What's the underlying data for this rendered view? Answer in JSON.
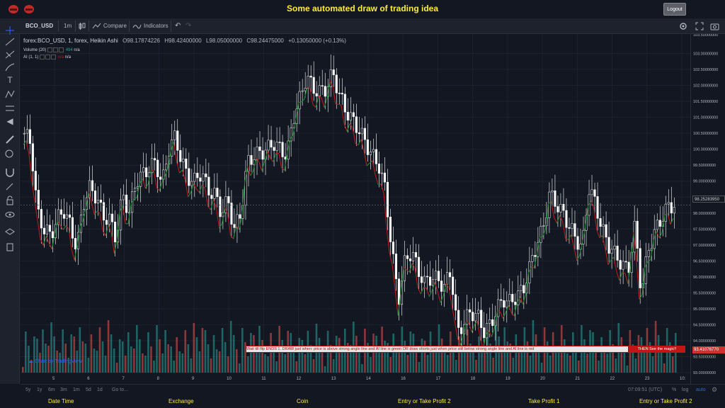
{
  "banner": {
    "title": "Some automated draw of trading idea",
    "logout_label": "Logout"
  },
  "toolbar": {
    "symbol": "BCO_USD",
    "interval": "1m",
    "compare_label": "Compare",
    "indicators_label": "Indicators"
  },
  "legend": {
    "symbol_desc": "forex:BCO_USD, 1, forex, Heikin Ashi",
    "open": "O98.17874226",
    "high": "H98.42400000",
    "low": "L98.05000000",
    "close": "C98.24475000",
    "change": "+0.13050000 (+0.13%)",
    "volume_label": "Volume (20)",
    "volume_value": "494",
    "volume_na": "n/a",
    "ai_label": "AI (1, 1)",
    "ai_value1": "n/a",
    "ai_value2": "n/a"
  },
  "price_axis": {
    "ticks": [
      "103.00000000",
      "102.50000000",
      "102.00000000",
      "101.50000000",
      "101.00000000",
      "100.50000000",
      "100.00000000",
      "99.50000000",
      "99.00000000",
      "98.50000000",
      "98.00000000",
      "97.50000000",
      "97.00000000",
      "96.50000000",
      "96.00000000",
      "95.50000000",
      "95.00000000",
      "94.50000000",
      "94.00000000",
      "93.50000000",
      "93.00000000"
    ],
    "top_tick": "103.50000000",
    "last_price": "98.25283950",
    "red_price": "93.41076770"
  },
  "time_axis": {
    "labels": [
      "5",
      "6",
      "7",
      "8",
      "9",
      "10",
      "11",
      "12",
      "13",
      "14",
      "16",
      "17",
      "18",
      "19",
      "20",
      "21",
      "22",
      "23",
      "10:"
    ]
  },
  "annotation": {
    "text": "Wait till flip ENDS  1.  DRAW just when:  price is above strong angle line and AI line is green        OR        draw shorts just when price still below strong angle line and AI line is red",
    "magic": "THEN See the magic!!"
  },
  "watermark": "Chart by TradingView",
  "bottom_bar": {
    "ranges": [
      "5y",
      "1y",
      "6m",
      "3m",
      "1m",
      "5d",
      "1d"
    ],
    "goto": "Go to...",
    "time": "07:09:51 (UTC)",
    "percent": "%",
    "log": "log",
    "auto": "auto"
  },
  "footer": {
    "items": [
      "Date Time",
      "Exchange",
      "Coin",
      "Entry or Take Profit 2",
      "Take Profit 1",
      "Entry or Take Profit 2"
    ]
  },
  "colors": {
    "accent_yellow": "#ffeb3b",
    "candle_white": "#ffffff",
    "ai_green": "#1b8a2e",
    "ai_red": "#b71c1c",
    "vol_green": "#26a69a",
    "vol_red": "#ef5350",
    "annotation_red": "#c01616"
  },
  "chart_data": {
    "type": "candlestick",
    "style": "Heikin Ashi",
    "ylim": [
      93.0,
      103.5
    ],
    "close_series": [
      100.5,
      100.2,
      98.0,
      97.5,
      97.3,
      97.8,
      98.1,
      97.6,
      96.9,
      98.3,
      98.8,
      98.5,
      97.9,
      97.8,
      97.2,
      98.6,
      98.0,
      99.0,
      99.2,
      99.4,
      99.6,
      98.9,
      100.0,
      100.4,
      99.6,
      99.1,
      99.0,
      99.3,
      98.7,
      98.6,
      98.0,
      98.4,
      97.5,
      98.0,
      99.6,
      99.8,
      99.9,
      100.0,
      100.2,
      100.0,
      99.8,
      101.0,
      101.6,
      102.3,
      101.9,
      101.8,
      101.9,
      102.4,
      101.7,
      101.2,
      100.9,
      100.6,
      100.2,
      99.8,
      99.5,
      98.7,
      96.8,
      95.3,
      96.5,
      96.8,
      96.2,
      95.8,
      96.0,
      95.9,
      95.7,
      96.2,
      94.2,
      94.6,
      94.9,
      94.8,
      94.3,
      94.5,
      95.0,
      95.3,
      95.2,
      95.4,
      95.6,
      96.3,
      97.0,
      97.5,
      98.6,
      98.3,
      98.0,
      97.6,
      97.2,
      96.9,
      98.8,
      98.3,
      97.5,
      97.0,
      96.7,
      96.4,
      96.2,
      97.6,
      95.5,
      96.8,
      97.4,
      97.8,
      98.2,
      98.25
    ]
  }
}
